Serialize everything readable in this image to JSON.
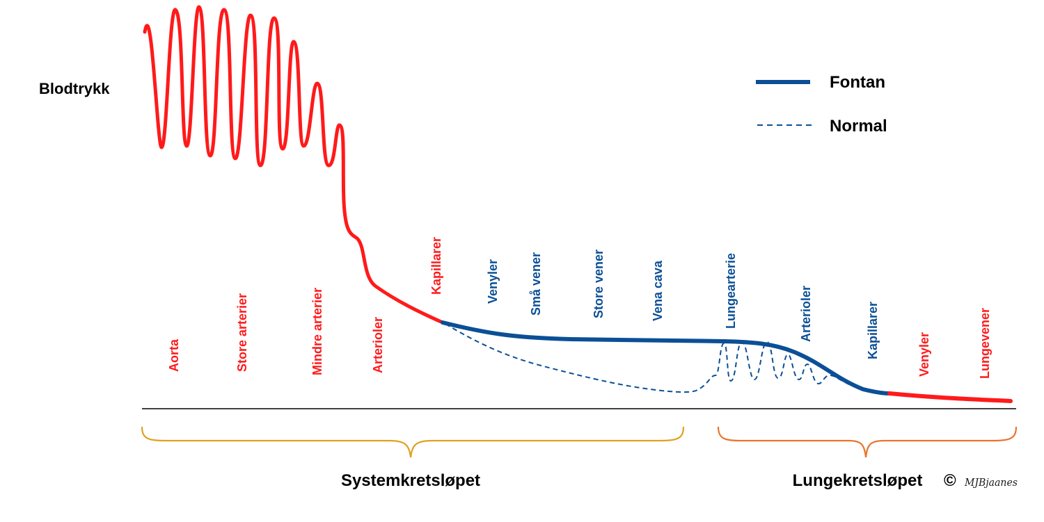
{
  "title": "Blodtrykk",
  "colors": {
    "normal_segment": "#ff1a1a",
    "fontan": "#0b4f96",
    "axis": "#000000",
    "brace_system": "#e0a020",
    "brace_lung": "#e8742a"
  },
  "legend": {
    "fontan": "Fontan",
    "normal": "Normal"
  },
  "segments": [
    {
      "label": "Aorta",
      "color": "#ff1a1a"
    },
    {
      "label": "Store arterier",
      "color": "#ff1a1a"
    },
    {
      "label": "Mindre arterier",
      "color": "#ff1a1a"
    },
    {
      "label": "Arterioler",
      "color": "#ff1a1a"
    },
    {
      "label": "Kapillarer",
      "color": "#ff1a1a"
    },
    {
      "label": "Venyler",
      "color": "#0b4f96"
    },
    {
      "label": "Små vener",
      "color": "#0b4f96"
    },
    {
      "label": "Store vener",
      "color": "#0b4f96"
    },
    {
      "label": "Vena cava",
      "color": "#0b4f96"
    },
    {
      "label": "Lungearterie",
      "color": "#0b4f96"
    },
    {
      "label": "Arterioler",
      "color": "#0b4f96"
    },
    {
      "label": "Kapillarer",
      "color": "#0b4f96"
    },
    {
      "label": "Venyler",
      "color": "#ff1a1a"
    },
    {
      "label": "Lungevener",
      "color": "#ff1a1a"
    }
  ],
  "circuits": {
    "system": "Systemkretsløpet",
    "lung": "Lungekretsløpet"
  },
  "copyright": {
    "symbol": "©",
    "signature": "MJBjaanes"
  }
}
